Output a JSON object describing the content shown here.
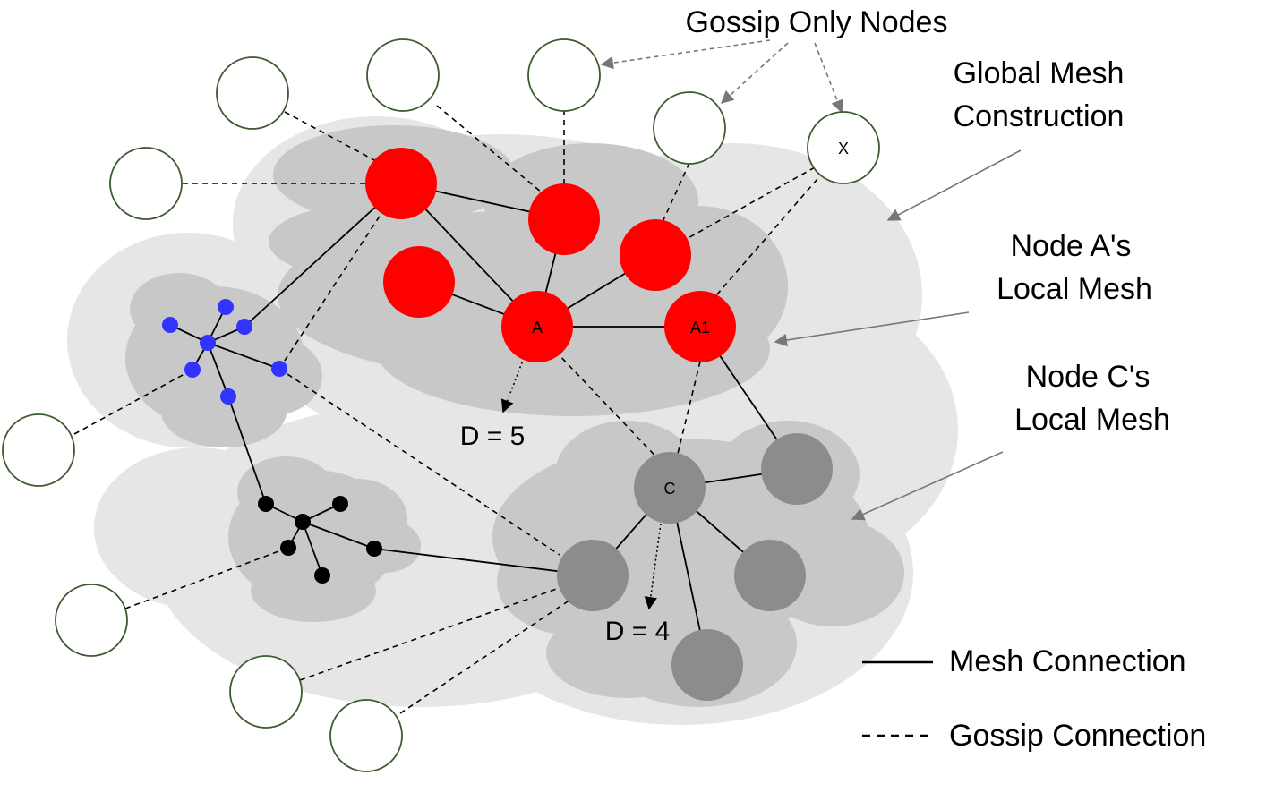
{
  "annotations": {
    "gossip_only_nodes": "Gossip Only Nodes",
    "global_mesh_line1": "Global Mesh",
    "global_mesh_line2": "Construction",
    "node_a_mesh_line1": "Node A's",
    "node_a_mesh_line2": "Local Mesh",
    "node_c_mesh_line1": "Node C's",
    "node_c_mesh_line2": "Local Mesh",
    "distance_a": "D = 5",
    "distance_c": "D = 4"
  },
  "nodes": {
    "a": "A",
    "a1": "A1",
    "c": "C",
    "x": "X"
  },
  "legend": {
    "mesh_connection": "Mesh Connection",
    "gossip_connection": "Gossip Connection"
  },
  "colors": {
    "red_node": "#ff0000",
    "blue_node": "#3333ff",
    "black_node": "#000000",
    "gray_node": "#8c8c8c",
    "gossip_node_stroke": "#3d5a30",
    "global_mesh_fill": "#e6e6e6",
    "local_mesh_fill": "#c8c8c8",
    "inner_mesh_fill": "#b4b4b4",
    "arrow_gray": "#777777"
  }
}
